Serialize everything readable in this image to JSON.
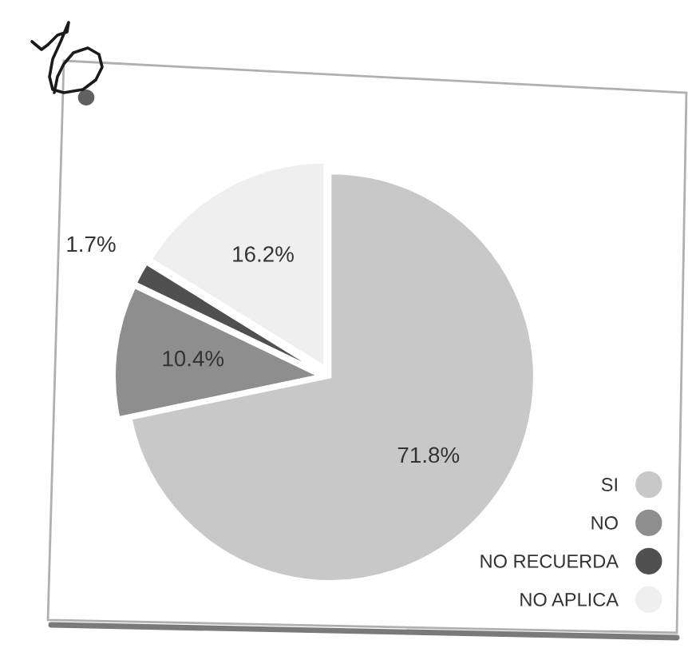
{
  "chart_data": {
    "type": "pie",
    "categories": [
      "SI",
      "NO",
      "NO RECUERDA",
      "NO APLICA"
    ],
    "values": [
      71.8,
      10.4,
      1.7,
      16.2
    ],
    "colors": [
      "#c8c8c8",
      "#8e8e8e",
      "#505050",
      "#efefef"
    ],
    "value_labels": [
      "71.8%",
      "10.4%",
      "1.7%",
      "16.2%"
    ],
    "legend": "bottom right"
  }
}
